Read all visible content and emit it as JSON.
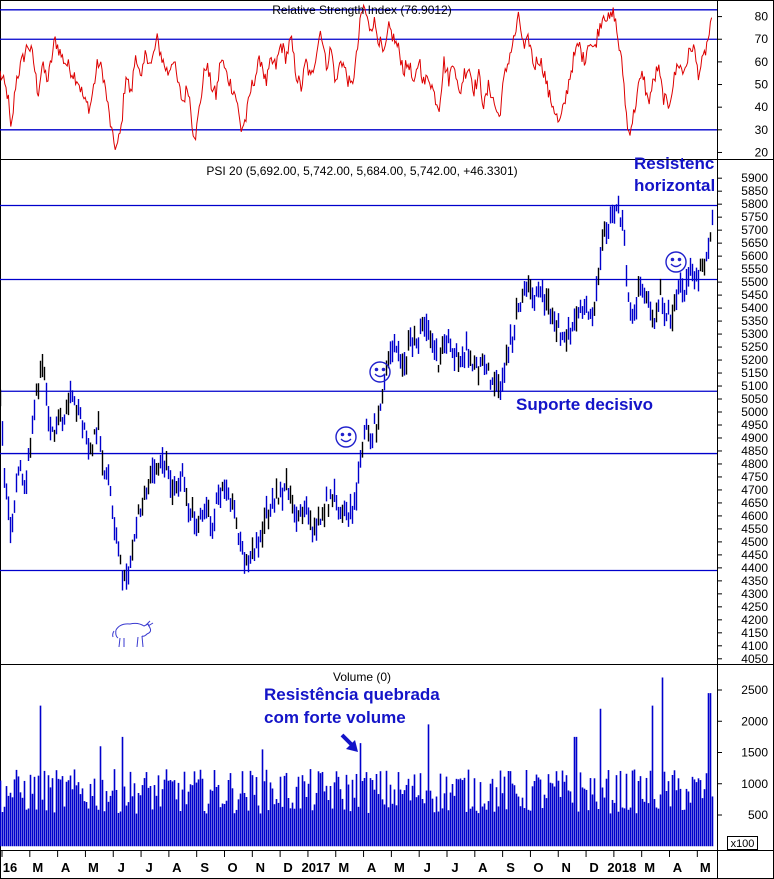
{
  "chart_data": [
    {
      "type": "line",
      "title": "Relative Strength Index (76.9012)",
      "series_color": "#dd0000",
      "ylim": [
        18,
        86
      ],
      "yticks": [
        20,
        30,
        40,
        50,
        60,
        70,
        80
      ],
      "levels": [
        30,
        70,
        83
      ],
      "level_color": "#0000cc",
      "anchors": [
        [
          0,
          55
        ],
        [
          8,
          45
        ],
        [
          11,
          28
        ],
        [
          16,
          52
        ],
        [
          22,
          60
        ],
        [
          28,
          68
        ],
        [
          33,
          62
        ],
        [
          38,
          46
        ],
        [
          42,
          58
        ],
        [
          48,
          52
        ],
        [
          55,
          70
        ],
        [
          62,
          62
        ],
        [
          70,
          57
        ],
        [
          78,
          52
        ],
        [
          85,
          42
        ],
        [
          90,
          40
        ],
        [
          98,
          60
        ],
        [
          103,
          55
        ],
        [
          108,
          40
        ],
        [
          113,
          25
        ],
        [
          117,
          22
        ],
        [
          121,
          30
        ],
        [
          126,
          55
        ],
        [
          131,
          45
        ],
        [
          136,
          65
        ],
        [
          141,
          50
        ],
        [
          146,
          65
        ],
        [
          151,
          58
        ],
        [
          157,
          70
        ],
        [
          163,
          60
        ],
        [
          168,
          55
        ],
        [
          173,
          62
        ],
        [
          178,
          50
        ],
        [
          183,
          42
        ],
        [
          188,
          50
        ],
        [
          193,
          30
        ],
        [
          196,
          28
        ],
        [
          201,
          45
        ],
        [
          206,
          60
        ],
        [
          211,
          50
        ],
        [
          216,
          45
        ],
        [
          221,
          62
        ],
        [
          226,
          55
        ],
        [
          231,
          50
        ],
        [
          236,
          45
        ],
        [
          241,
          30
        ],
        [
          246,
          35
        ],
        [
          251,
          48
        ],
        [
          256,
          55
        ],
        [
          261,
          62
        ],
        [
          266,
          50
        ],
        [
          271,
          60
        ],
        [
          276,
          58
        ],
        [
          281,
          68
        ],
        [
          286,
          62
        ],
        [
          291,
          70
        ],
        [
          296,
          55
        ],
        [
          301,
          48
        ],
        [
          306,
          60
        ],
        [
          311,
          52
        ],
        [
          316,
          64
        ],
        [
          321,
          75
        ],
        [
          326,
          58
        ],
        [
          331,
          66
        ],
        [
          336,
          50
        ],
        [
          341,
          62
        ],
        [
          346,
          55
        ],
        [
          351,
          48
        ],
        [
          356,
          60
        ],
        [
          361,
          80
        ],
        [
          364,
          85
        ],
        [
          369,
          75
        ],
        [
          374,
          78
        ],
        [
          379,
          70
        ],
        [
          384,
          62
        ],
        [
          389,
          75
        ],
        [
          394,
          70
        ],
        [
          399,
          65
        ],
        [
          404,
          56
        ],
        [
          409,
          60
        ],
        [
          414,
          48
        ],
        [
          419,
          62
        ],
        [
          424,
          50
        ],
        [
          429,
          54
        ],
        [
          434,
          46
        ],
        [
          439,
          40
        ],
        [
          444,
          60
        ],
        [
          449,
          52
        ],
        [
          454,
          62
        ],
        [
          459,
          44
        ],
        [
          464,
          55
        ],
        [
          469,
          58
        ],
        [
          474,
          48
        ],
        [
          479,
          54
        ],
        [
          484,
          40
        ],
        [
          489,
          50
        ],
        [
          494,
          42
        ],
        [
          499,
          35
        ],
        [
          504,
          52
        ],
        [
          509,
          62
        ],
        [
          514,
          70
        ],
        [
          519,
          80
        ],
        [
          524,
          65
        ],
        [
          529,
          70
        ],
        [
          534,
          58
        ],
        [
          539,
          62
        ],
        [
          544,
          56
        ],
        [
          549,
          45
        ],
        [
          554,
          40
        ],
        [
          559,
          32
        ],
        [
          564,
          40
        ],
        [
          569,
          52
        ],
        [
          574,
          62
        ],
        [
          579,
          68
        ],
        [
          584,
          60
        ],
        [
          589,
          70
        ],
        [
          594,
          65
        ],
        [
          599,
          75
        ],
        [
          604,
          82
        ],
        [
          609,
          78
        ],
        [
          614,
          82
        ],
        [
          618,
          70
        ],
        [
          623,
          55
        ],
        [
          628,
          28
        ],
        [
          633,
          35
        ],
        [
          638,
          48
        ],
        [
          643,
          55
        ],
        [
          648,
          42
        ],
        [
          653,
          50
        ],
        [
          658,
          58
        ],
        [
          663,
          45
        ],
        [
          668,
          40
        ],
        [
          673,
          50
        ],
        [
          678,
          60
        ],
        [
          683,
          55
        ],
        [
          688,
          62
        ],
        [
          693,
          68
        ],
        [
          698,
          55
        ],
        [
          703,
          60
        ],
        [
          708,
          70
        ],
        [
          712,
          77
        ]
      ]
    },
    {
      "type": "candlestick",
      "title": "PSI 20 (5,692.00, 5,742.00, 5,684.00, 5,742.00, +46.3301)",
      "series_color": "#0000cc",
      "ylim": [
        4030,
        5970
      ],
      "yticks": [
        4050,
        4100,
        4150,
        4200,
        4250,
        4300,
        4350,
        4400,
        4450,
        4500,
        4550,
        4600,
        4650,
        4700,
        4750,
        4800,
        4850,
        4900,
        4950,
        5000,
        5050,
        5100,
        5150,
        5200,
        5250,
        5300,
        5350,
        5400,
        5450,
        5500,
        5550,
        5600,
        5650,
        5700,
        5750,
        5800,
        5850,
        5900
      ],
      "levels": [
        5795,
        5510,
        5080,
        4840,
        4390
      ],
      "level_color": "#0000cc",
      "anchors": [
        [
          0,
          5050
        ],
        [
          5,
          4700
        ],
        [
          10,
          4550
        ],
        [
          15,
          4650
        ],
        [
          19,
          4800
        ],
        [
          24,
          4700
        ],
        [
          29,
          4850
        ],
        [
          34,
          5000
        ],
        [
          39,
          5150
        ],
        [
          43,
          5180
        ],
        [
          48,
          4950
        ],
        [
          53,
          4900
        ],
        [
          58,
          5000
        ],
        [
          63,
          4950
        ],
        [
          68,
          5050
        ],
        [
          73,
          5080
        ],
        [
          78,
          5000
        ],
        [
          83,
          4950
        ],
        [
          88,
          4850
        ],
        [
          93,
          4900
        ],
        [
          98,
          4950
        ],
        [
          103,
          4800
        ],
        [
          108,
          4750
        ],
        [
          113,
          4600
        ],
        [
          117,
          4500
        ],
        [
          121,
          4380
        ],
        [
          125,
          4330
        ],
        [
          129,
          4400
        ],
        [
          133,
          4500
        ],
        [
          137,
          4600
        ],
        [
          142,
          4650
        ],
        [
          147,
          4700
        ],
        [
          152,
          4750
        ],
        [
          157,
          4780
        ],
        [
          162,
          4800
        ],
        [
          167,
          4770
        ],
        [
          172,
          4720
        ],
        [
          177,
          4700
        ],
        [
          182,
          4750
        ],
        [
          187,
          4650
        ],
        [
          192,
          4600
        ],
        [
          197,
          4550
        ],
        [
          202,
          4600
        ],
        [
          207,
          4620
        ],
        [
          212,
          4580
        ],
        [
          217,
          4650
        ],
        [
          222,
          4700
        ],
        [
          227,
          4720
        ],
        [
          232,
          4650
        ],
        [
          237,
          4550
        ],
        [
          242,
          4450
        ],
        [
          247,
          4400
        ],
        [
          252,
          4450
        ],
        [
          257,
          4480
        ],
        [
          262,
          4550
        ],
        [
          267,
          4620
        ],
        [
          272,
          4650
        ],
        [
          277,
          4680
        ],
        [
          282,
          4700
        ],
        [
          287,
          4720
        ],
        [
          292,
          4650
        ],
        [
          297,
          4600
        ],
        [
          302,
          4620
        ],
        [
          307,
          4600
        ],
        [
          312,
          4550
        ],
        [
          317,
          4580
        ],
        [
          322,
          4620
        ],
        [
          327,
          4650
        ],
        [
          332,
          4680
        ],
        [
          337,
          4650
        ],
        [
          342,
          4630
        ],
        [
          347,
          4620
        ],
        [
          352,
          4640
        ],
        [
          357,
          4700
        ],
        [
          361,
          4850
        ],
        [
          365,
          4950
        ],
        [
          370,
          4900
        ],
        [
          375,
          4950
        ],
        [
          380,
          5000
        ],
        [
          384,
          5100
        ],
        [
          388,
          5200
        ],
        [
          393,
          5250
        ],
        [
          398,
          5220
        ],
        [
          403,
          5150
        ],
        [
          408,
          5250
        ],
        [
          413,
          5300
        ],
        [
          418,
          5280
        ],
        [
          423,
          5320
        ],
        [
          428,
          5300
        ],
        [
          433,
          5250
        ],
        [
          438,
          5200
        ],
        [
          443,
          5250
        ],
        [
          448,
          5280
        ],
        [
          453,
          5230
        ],
        [
          458,
          5200
        ],
        [
          463,
          5250
        ],
        [
          468,
          5220
        ],
        [
          473,
          5180
        ],
        [
          478,
          5150
        ],
        [
          483,
          5200
        ],
        [
          488,
          5150
        ],
        [
          493,
          5100
        ],
        [
          498,
          5080
        ],
        [
          503,
          5150
        ],
        [
          508,
          5250
        ],
        [
          513,
          5300
        ],
        [
          518,
          5400
        ],
        [
          523,
          5450
        ],
        [
          528,
          5480
        ],
        [
          533,
          5460
        ],
        [
          538,
          5480
        ],
        [
          543,
          5440
        ],
        [
          548,
          5400
        ],
        [
          553,
          5350
        ],
        [
          558,
          5320
        ],
        [
          563,
          5280
        ],
        [
          568,
          5300
        ],
        [
          573,
          5350
        ],
        [
          578,
          5400
        ],
        [
          583,
          5420
        ],
        [
          588,
          5380
        ],
        [
          593,
          5400
        ],
        [
          598,
          5550
        ],
        [
          603,
          5650
        ],
        [
          608,
          5700
        ],
        [
          613,
          5750
        ],
        [
          618,
          5780
        ],
        [
          623,
          5700
        ],
        [
          627,
          5500
        ],
        [
          631,
          5300
        ],
        [
          635,
          5400
        ],
        [
          640,
          5500
        ],
        [
          645,
          5450
        ],
        [
          650,
          5400
        ],
        [
          655,
          5350
        ],
        [
          660,
          5450
        ],
        [
          665,
          5400
        ],
        [
          670,
          5350
        ],
        [
          675,
          5450
        ],
        [
          680,
          5500
        ],
        [
          685,
          5480
        ],
        [
          690,
          5550
        ],
        [
          695,
          5520
        ],
        [
          700,
          5550
        ],
        [
          705,
          5600
        ],
        [
          710,
          5700
        ],
        [
          712,
          5742
        ]
      ]
    },
    {
      "type": "bar",
      "title": "Volume (0)",
      "series_color": "#0000cc",
      "ylim": [
        -60,
        2900
      ],
      "yticks": [
        500,
        1000,
        1500,
        2000,
        2500
      ],
      "scale_label": "x100",
      "typical_value": 950,
      "spikes": [
        [
          40,
          2250
        ],
        [
          100,
          1600
        ],
        [
          122,
          1750
        ],
        [
          262,
          1550
        ],
        [
          360,
          1650
        ],
        [
          428,
          1950
        ],
        [
          575,
          1750
        ],
        [
          600,
          2200
        ],
        [
          652,
          2250
        ],
        [
          662,
          2700
        ],
        [
          709,
          2450
        ]
      ],
      "months": [
        "16",
        "M",
        "A",
        "M",
        "J",
        "J",
        "A",
        "S",
        "O",
        "N",
        "D",
        "2017",
        "M",
        "A",
        "M",
        "J",
        "J",
        "A",
        "S",
        "O",
        "N",
        "D",
        "2018",
        "M",
        "A",
        "M"
      ]
    }
  ],
  "annotations": {
    "resistencia_horizontal": [
      "Resistenc",
      "horizontal"
    ],
    "suporte_decisivo": "Suporte decisivo",
    "resistencia_quebrada": [
      "Resistência quebrada",
      "com forte volume"
    ]
  }
}
